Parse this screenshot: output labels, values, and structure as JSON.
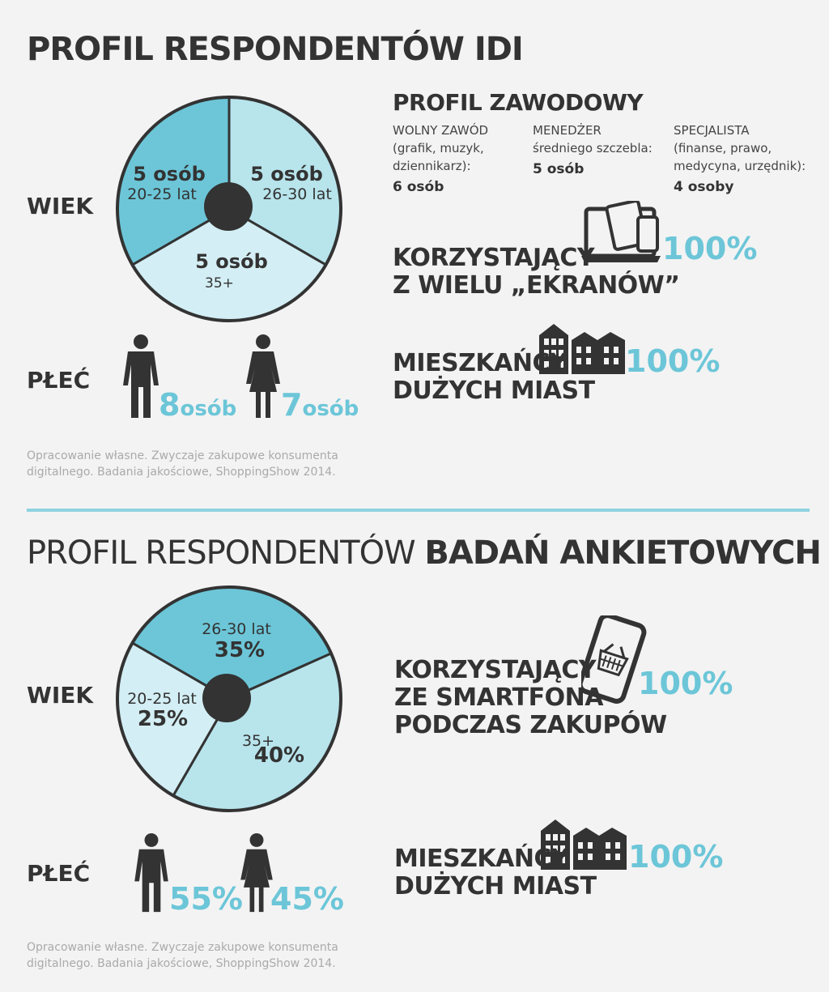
{
  "section1": {
    "title": "PROFIL RESPONDENTÓW IDI",
    "wiek_label": "WIEK",
    "plec_label": "PŁEĆ",
    "pie": [
      {
        "label": "5 osób",
        "sub": "20-25 lat",
        "color": "#6cc6d8"
      },
      {
        "label": "5 osób",
        "sub": "26-30 lat",
        "color": "#b8e4ec"
      },
      {
        "label": "5 osób",
        "sub": "35+",
        "color": "#d3eef4"
      }
    ],
    "male_num": "8",
    "male_unit": "osób",
    "female_num": "7",
    "female_unit": "osób",
    "source_line1": "Opracowanie własne. Zwyczaje zakupowe konsumenta",
    "source_line2": "digitalnego. Badania jakościowe, ShoppingShow 2014.",
    "profil_title": "PROFIL ZAWODOWY",
    "profil": [
      {
        "line1": "WOLNY ZAWÓD",
        "line2": "(grafik, muzyk,",
        "line3": "dziennikarz):",
        "value": "6 osób"
      },
      {
        "line1": "MENEDŻER",
        "line2": "średniego szczebla:",
        "line3": "",
        "value": "5 osób"
      },
      {
        "line1": "SPECJALISTA",
        "line2": "(finanse, prawo,",
        "line3": "medycyna, urzędnik):",
        "value": "4 osoby"
      }
    ],
    "screens_line1": "KORZYSTAJĄCY",
    "screens_line2": "Z WIELU „EKRANÓW”",
    "screens_pct": "100%",
    "cities_line1": "MIESZKAŃCY",
    "cities_line2": "DUŻYCH MIAST",
    "cities_pct": "100%"
  },
  "section2": {
    "title_light": "PROFIL RESPONDENTÓW ",
    "title_bold": "BADAŃ ANKIETOWYCH",
    "wiek_label": "WIEK",
    "plec_label": "PŁEĆ",
    "pie": [
      {
        "label": "35%",
        "sub": "26-30 lat",
        "value": 35,
        "color": "#6cc6d8"
      },
      {
        "label": "40%",
        "sub": "35+",
        "value": 40,
        "color": "#b8e4ec"
      },
      {
        "label": "25%",
        "sub": "20-25 lat",
        "value": 25,
        "color": "#d3eef4"
      }
    ],
    "male_pct": "55%",
    "female_pct": "45%",
    "source_line1": "Opracowanie własne. Zwyczaje zakupowe konsumenta",
    "source_line2": "digitalnego. Badania jakościowe, ShoppingShow 2014.",
    "phone_line1": "KORZYSTAJĄCY",
    "phone_line2": "ZE SMARTFONA",
    "phone_line3": "PODCZAS ZAKUPÓW",
    "phone_pct": "100%",
    "cities_line1": "MIESZKAŃCY",
    "cities_line2": "DUŻYCH MIAST",
    "cities_pct": "100%"
  },
  "colors": {
    "accent": "#6cc6d8",
    "dark": "#333333",
    "pie_stroke": "#333333",
    "divider": "#8fd3e0"
  }
}
